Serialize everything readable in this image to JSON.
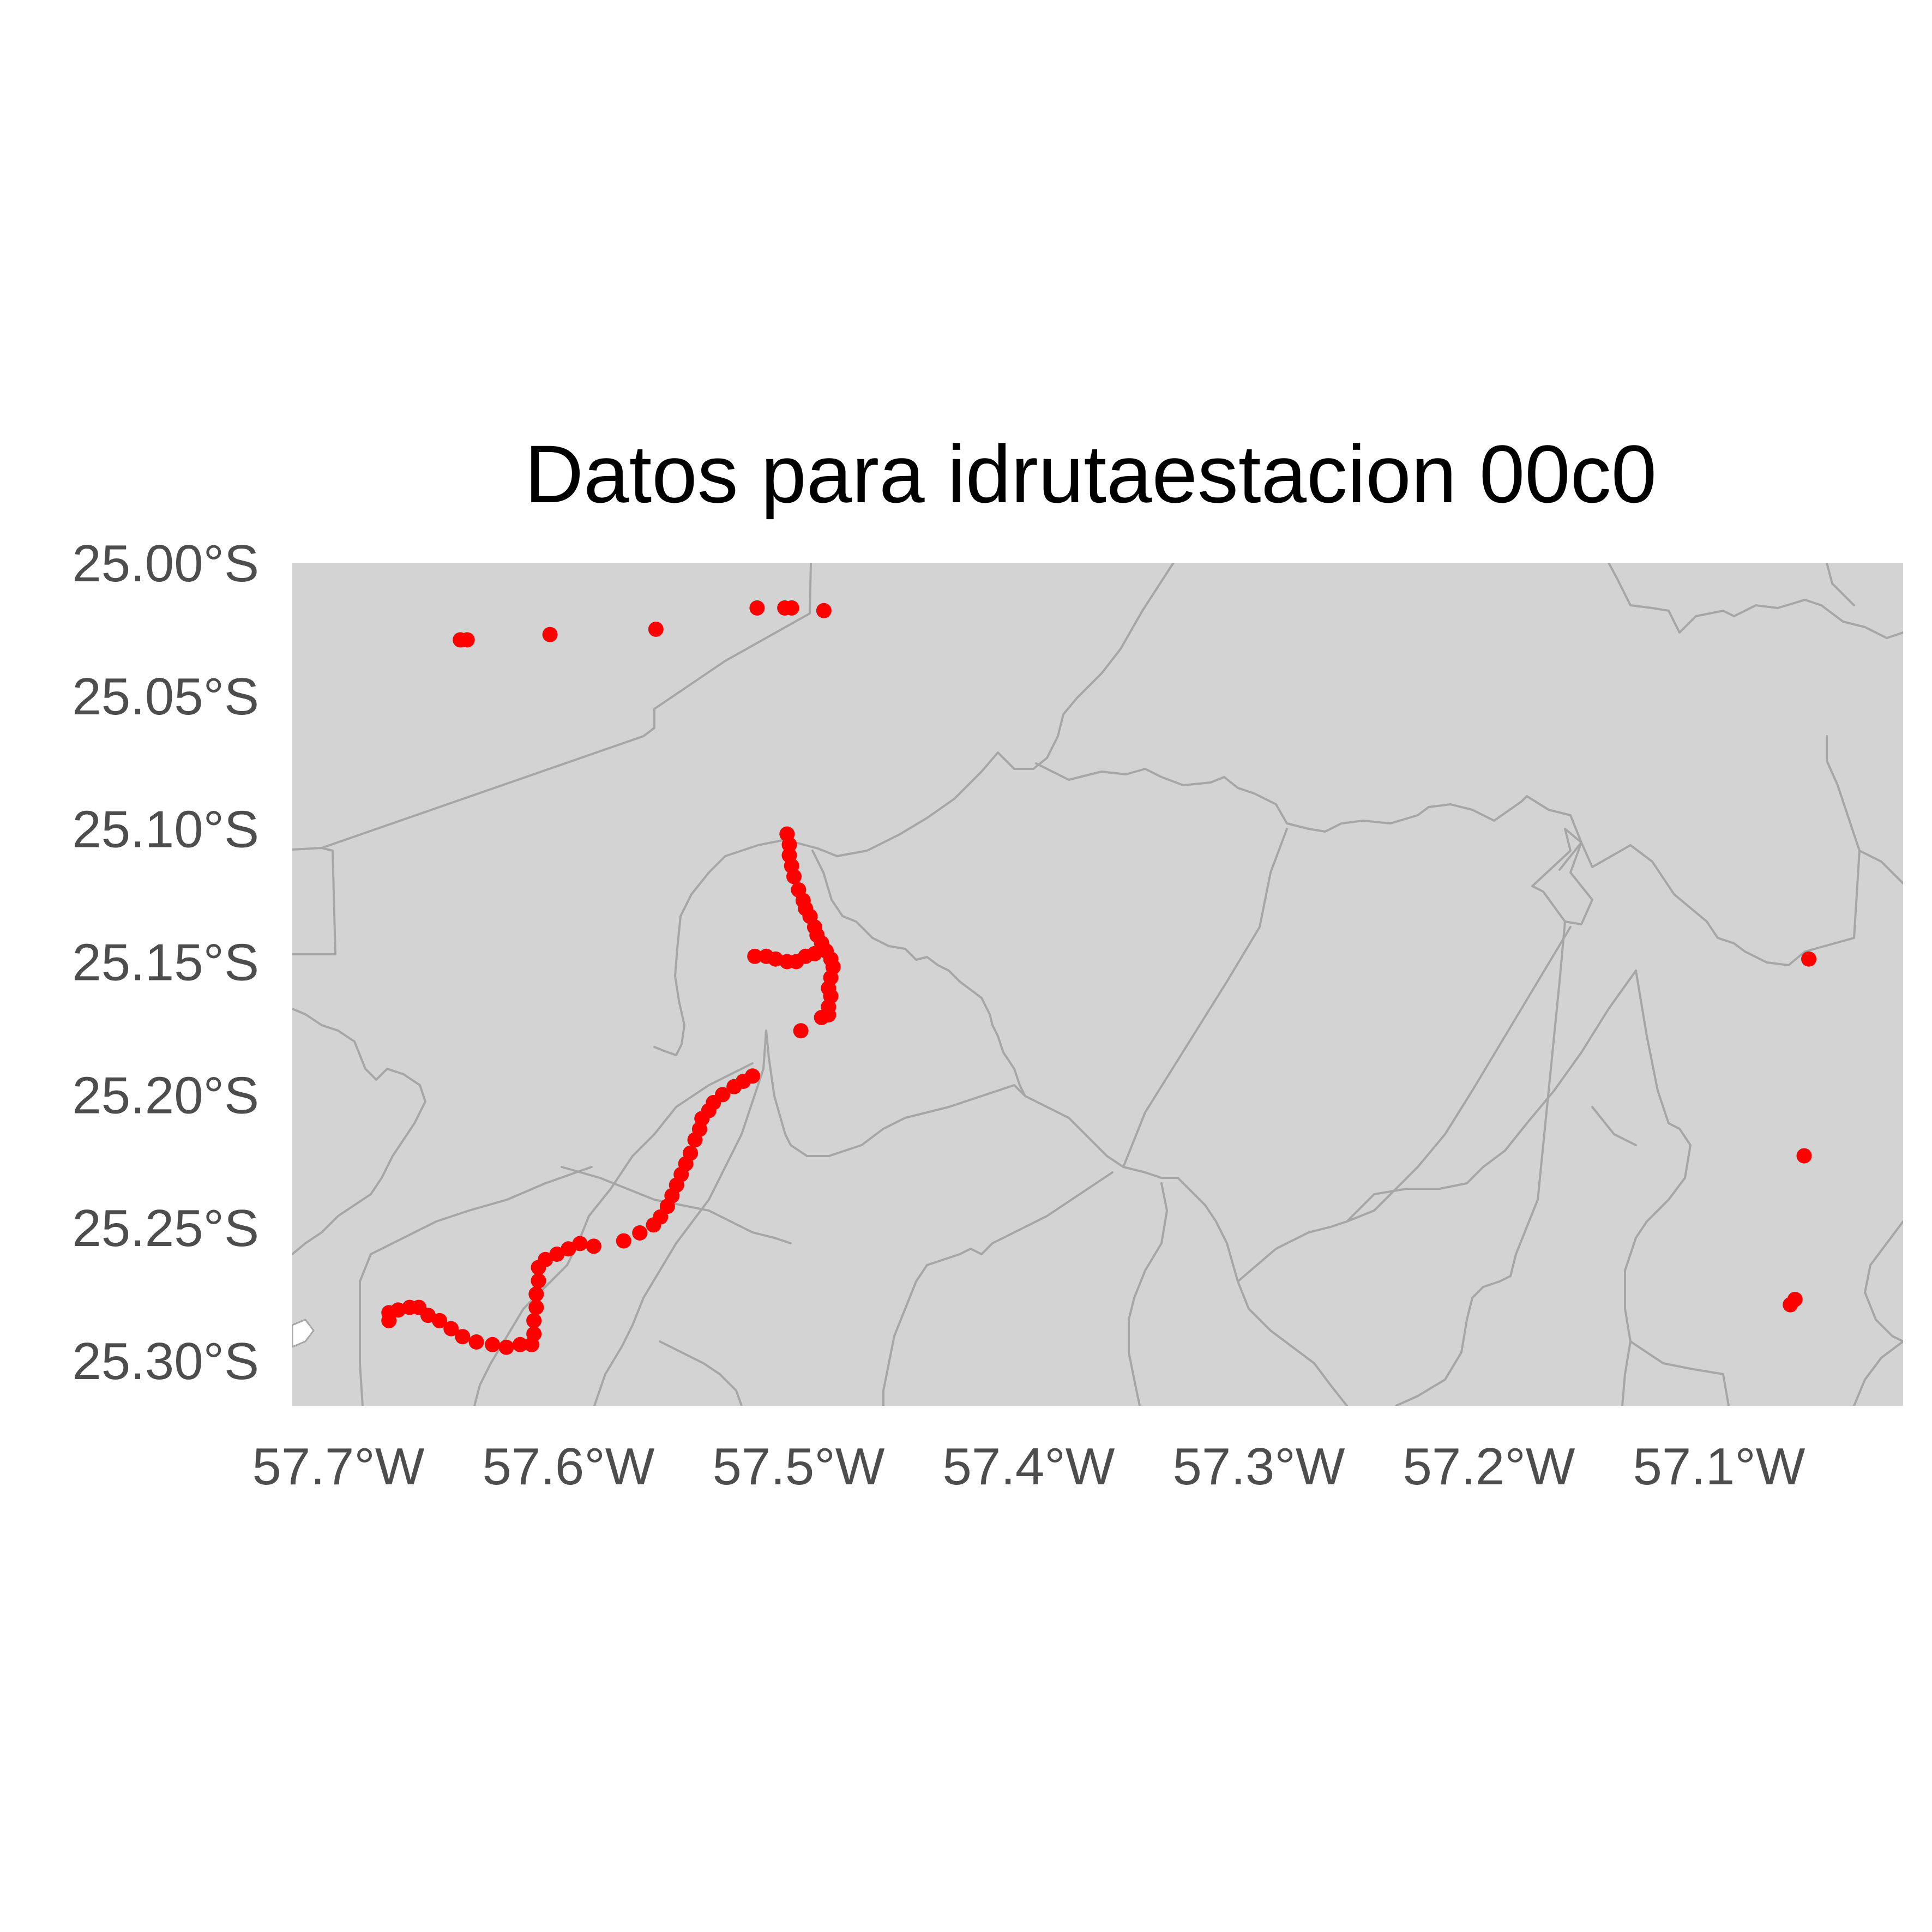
{
  "chart_data": {
    "type": "scatter",
    "title": "Datos para idrutaestacion 00c0",
    "xlabel": "",
    "ylabel": "",
    "xlim": [
      -57.72,
      -57.02
    ],
    "ylim": [
      -25.317,
      -25.0
    ],
    "x_ticks": [
      -57.7,
      -57.6,
      -57.5,
      -57.4,
      -57.3,
      -57.2,
      -57.1
    ],
    "x_tick_labels": [
      "57.7°W",
      "57.6°W",
      "57.5°W",
      "57.4°W",
      "57.3°W",
      "57.2°W",
      "57.1°W"
    ],
    "y_ticks": [
      -25.0,
      -25.05,
      -25.1,
      -25.15,
      -25.2,
      -25.25,
      -25.3
    ],
    "y_tick_labels": [
      "25.00°S",
      "25.05°S",
      "25.10°S",
      "25.15°S",
      "25.20°S",
      "25.25°S",
      "25.30°S"
    ],
    "grid": false,
    "legend": "none",
    "colors": {
      "points": "#ff0000",
      "land": "#d3d3d3",
      "boundaries": "#a6a6a6",
      "tick_text": "#4d4d4d",
      "title_text": "#000000"
    },
    "series": [
      {
        "points": [
          [
            -57.647,
            -25.029
          ],
          [
            -57.644,
            -25.029
          ],
          [
            -57.608,
            -25.027
          ],
          [
            -57.562,
            -25.025
          ],
          [
            -57.518,
            -25.017
          ],
          [
            -57.506,
            -25.017
          ],
          [
            -57.503,
            -25.017
          ],
          [
            -57.489,
            -25.018
          ],
          [
            -57.505,
            -25.102
          ],
          [
            -57.504,
            -25.106
          ],
          [
            -57.504,
            -25.11
          ],
          [
            -57.503,
            -25.114
          ],
          [
            -57.502,
            -25.118
          ],
          [
            -57.5,
            -25.123
          ],
          [
            -57.498,
            -25.127
          ],
          [
            -57.497,
            -25.13
          ],
          [
            -57.495,
            -25.133
          ],
          [
            -57.493,
            -25.137
          ],
          [
            -57.492,
            -25.14
          ],
          [
            -57.49,
            -25.143
          ],
          [
            -57.488,
            -25.146
          ],
          [
            -57.486,
            -25.149
          ],
          [
            -57.485,
            -25.152
          ],
          [
            -57.486,
            -25.156
          ],
          [
            -57.487,
            -25.16
          ],
          [
            -57.486,
            -25.163
          ],
          [
            -57.487,
            -25.167
          ],
          [
            -57.487,
            -25.17
          ],
          [
            -57.49,
            -25.171
          ],
          [
            -57.499,
            -25.176
          ],
          [
            -57.519,
            -25.148
          ],
          [
            -57.514,
            -25.148
          ],
          [
            -57.51,
            -25.149
          ],
          [
            -57.505,
            -25.15
          ],
          [
            -57.501,
            -25.15
          ],
          [
            -57.497,
            -25.148
          ],
          [
            -57.493,
            -25.147
          ],
          [
            -57.52,
            -25.193
          ],
          [
            -57.524,
            -25.195
          ],
          [
            -57.528,
            -25.197
          ],
          [
            -57.533,
            -25.2
          ],
          [
            -57.537,
            -25.203
          ],
          [
            -57.539,
            -25.206
          ],
          [
            -57.542,
            -25.209
          ],
          [
            -57.543,
            -25.213
          ],
          [
            -57.545,
            -25.217
          ],
          [
            -57.547,
            -25.222
          ],
          [
            -57.549,
            -25.226
          ],
          [
            -57.551,
            -25.23
          ],
          [
            -57.553,
            -25.234
          ],
          [
            -57.555,
            -25.238
          ],
          [
            -57.557,
            -25.242
          ],
          [
            -57.56,
            -25.246
          ],
          [
            -57.563,
            -25.249
          ],
          [
            -57.569,
            -25.252
          ],
          [
            -57.576,
            -25.255
          ],
          [
            -57.589,
            -25.257
          ],
          [
            -57.595,
            -25.256
          ],
          [
            -57.6,
            -25.258
          ],
          [
            -57.605,
            -25.26
          ],
          [
            -57.61,
            -25.262
          ],
          [
            -57.613,
            -25.265
          ],
          [
            -57.613,
            -25.27
          ],
          [
            -57.614,
            -25.275
          ],
          [
            -57.614,
            -25.28
          ],
          [
            -57.615,
            -25.285
          ],
          [
            -57.615,
            -25.29
          ],
          [
            -57.616,
            -25.294
          ],
          [
            -57.621,
            -25.294
          ],
          [
            -57.627,
            -25.295
          ],
          [
            -57.633,
            -25.294
          ],
          [
            -57.64,
            -25.293
          ],
          [
            -57.646,
            -25.291
          ],
          [
            -57.651,
            -25.288
          ],
          [
            -57.656,
            -25.285
          ],
          [
            -57.661,
            -25.283
          ],
          [
            -57.665,
            -25.28
          ],
          [
            -57.669,
            -25.28
          ],
          [
            -57.674,
            -25.281
          ],
          [
            -57.678,
            -25.282
          ],
          [
            -57.678,
            -25.285
          ],
          [
            -57.061,
            -25.149
          ],
          [
            -57.063,
            -25.223
          ],
          [
            -57.067,
            -25.277
          ],
          [
            -57.069,
            -25.279
          ]
        ]
      }
    ]
  }
}
